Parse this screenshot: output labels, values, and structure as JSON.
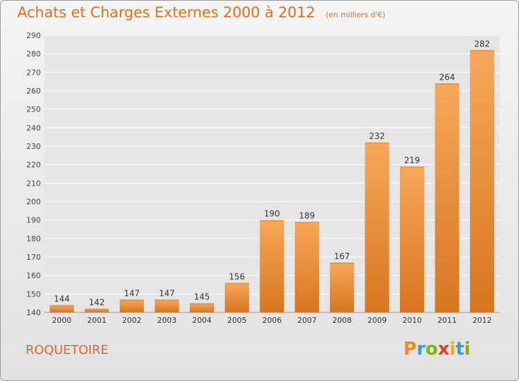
{
  "header": {
    "title": "Achats et Charges Externes 2000 à 2012",
    "unit": "(en milliers d'€)"
  },
  "footer": {
    "commune": "ROQUETOIRE",
    "logo_text": "Proxiti",
    "logo_colors": [
      "#f08a1c",
      "#3a9bd9",
      "#7ab800",
      "#e63b2e",
      "#f0b400",
      "#3a9bd9",
      "#7ab800"
    ]
  },
  "colors": {
    "bar_top": "#f7a85a",
    "bar_bottom": "#d8751e",
    "accent": "#df6f1f",
    "grid": "#ffffff"
  },
  "chart_data": {
    "type": "bar",
    "categories": [
      "2000",
      "2001",
      "2002",
      "2003",
      "2004",
      "2005",
      "2006",
      "2007",
      "2008",
      "2009",
      "2010",
      "2011",
      "2012"
    ],
    "values": [
      144,
      142,
      147,
      147,
      145,
      156,
      190,
      189,
      167,
      232,
      219,
      264,
      282
    ],
    "value_labels": [
      "144",
      "142",
      "147",
      "147",
      "145",
      "156",
      "190",
      "189",
      "167",
      "232",
      "219",
      "264",
      "282"
    ],
    "yticks": [
      "140",
      "150",
      "160",
      "170",
      "180",
      "190",
      "200",
      "210",
      "220",
      "230",
      "240",
      "250",
      "260",
      "270",
      "280",
      "290"
    ],
    "ylim": [
      140,
      290
    ],
    "grid": true,
    "legend": "none"
  }
}
